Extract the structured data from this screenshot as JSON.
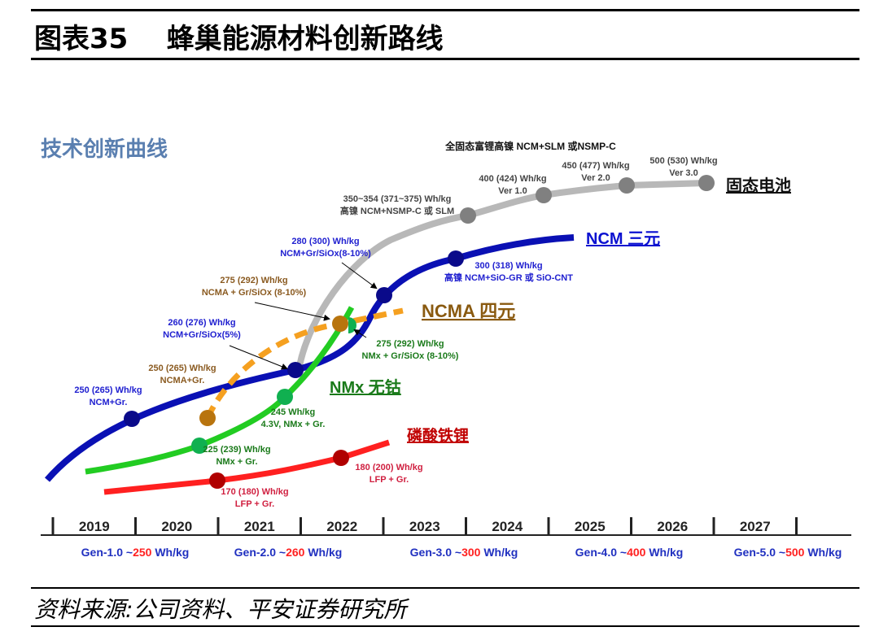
{
  "header": {
    "figure_no": "图表35",
    "title": "蜂巢能源材料创新路线"
  },
  "diagram": {
    "subtitle": "技术创新曲线",
    "top_note": "全固态富锂高镍 NCM+SLM 或NSMP-C",
    "colors": {
      "ncm": "#0a10b4",
      "solid": "#b8b8b8",
      "ncma": "#f5a020",
      "nmx": "#22cc22",
      "lfp": "#ff2020"
    },
    "series": {
      "solid": {
        "name": "固态电池"
      },
      "ncm": {
        "name": "NCM 三元"
      },
      "ncma": {
        "name": "NCMA 四元"
      },
      "nmx": {
        "name": "NMx 无钴"
      },
      "lfp": {
        "name": "磷酸铁锂"
      }
    },
    "labels": [
      [
        "350~354 (371~375) Wh/kg",
        "高镍 NCM+NSMP-C 或 SLM"
      ],
      [
        "400 (424) Wh/kg",
        "Ver 1.0"
      ],
      [
        "450 (477) Wh/kg",
        "Ver 2.0"
      ],
      [
        "500 (530) Wh/kg",
        "Ver 3.0"
      ],
      [
        "280 (300) Wh/kg",
        "NCM+Gr/SiOx(8-10%)"
      ],
      [
        "300 (318) Wh/kg",
        "高镍 NCM+SiO-GR 或 SiO-CNT"
      ],
      [
        "275 (292)  Wh/kg",
        "NCMA + Gr/SiOx (8-10%)"
      ],
      [
        "260 (276) Wh/kg",
        "NCM+Gr/SiOx(5%)"
      ],
      [
        "275 (292)  Wh/kg",
        "NMx + Gr/SiOx (8-10%)"
      ],
      [
        "250 (265) Wh/kg",
        "NCMA+Gr."
      ],
      [
        "250 (265) Wh/kg",
        "NCM+Gr."
      ],
      [
        "245  Wh/kg",
        "4.3V, NMx + Gr."
      ],
      [
        "225 (239) Wh/kg",
        "NMx + Gr."
      ],
      [
        "170 (180) Wh/kg",
        "LFP + Gr."
      ],
      [
        "180 (200) Wh/kg",
        "LFP + Gr."
      ]
    ],
    "years": [
      "2019",
      "2020",
      "2021",
      "2022",
      "2023",
      "2024",
      "2025",
      "2026",
      "2027"
    ],
    "generations": [
      {
        "gen": "Gen-1.0 ~",
        "value": "250",
        "unit": " Wh/kg"
      },
      {
        "gen": "Gen-2.0 ~",
        "value": "260",
        "unit": " Wh/kg"
      },
      {
        "gen": "Gen-3.0 ~",
        "value": "300",
        "unit": " Wh/kg"
      },
      {
        "gen": "Gen-4.0 ~",
        "value": "400",
        "unit": " Wh/kg"
      },
      {
        "gen": "Gen-5.0 ~",
        "value": "500",
        "unit": " Wh/kg"
      }
    ]
  },
  "footer": {
    "source": "资料来源:公司资料、平安证券研究所"
  }
}
